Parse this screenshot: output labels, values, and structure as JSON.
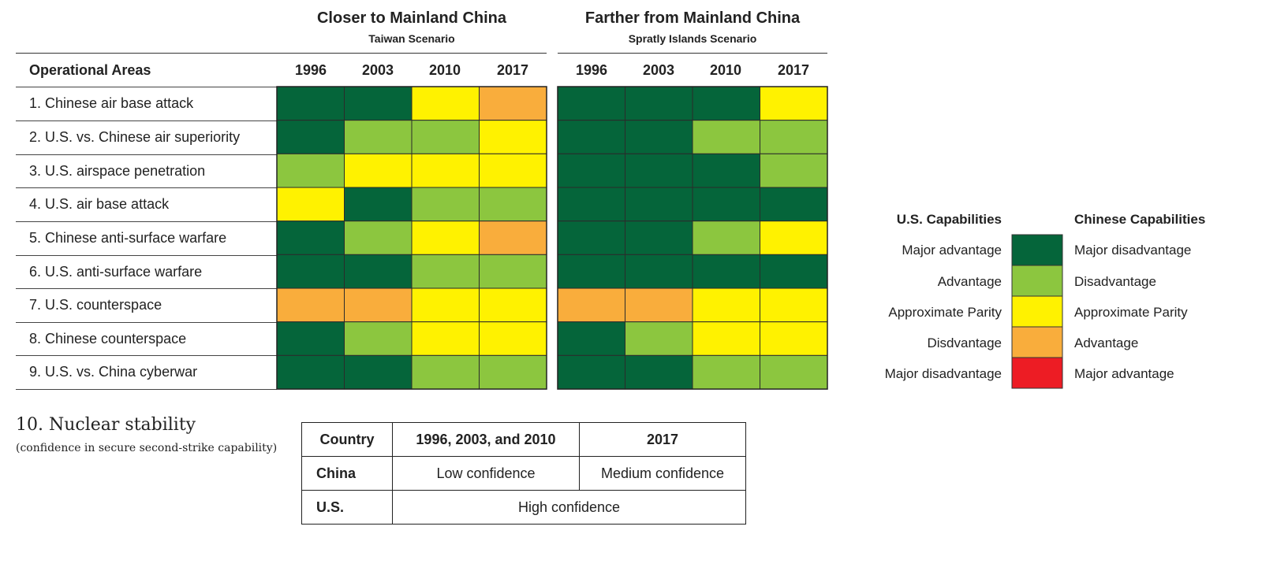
{
  "chart_data": {
    "type": "heatmap",
    "row_header": "Operational Areas",
    "rows": [
      "1. Chinese air base attack",
      "2. U.S. vs. Chinese air superiority",
      "3. U.S. airspace penetration",
      "4. U.S. air base attack",
      "5. Chinese anti-surface warfare",
      "6. U.S. anti-surface warfare",
      "7. U.S. counterspace",
      "8. Chinese counterspace",
      "9. U.S. vs. China cyberwar"
    ],
    "scenarios": [
      {
        "title": "Closer to Mainland China",
        "subtitle": "Taiwan Scenario",
        "years": [
          "1996",
          "2003",
          "2010",
          "2017"
        ],
        "levels": [
          [
            1,
            1,
            3,
            4
          ],
          [
            1,
            2,
            2,
            3
          ],
          [
            2,
            3,
            3,
            3
          ],
          [
            3,
            1,
            2,
            2
          ],
          [
            1,
            2,
            3,
            4
          ],
          [
            1,
            1,
            2,
            2
          ],
          [
            4,
            4,
            3,
            3
          ],
          [
            1,
            2,
            3,
            3
          ],
          [
            1,
            1,
            2,
            2
          ]
        ]
      },
      {
        "title": "Farther from Mainland China",
        "subtitle": "Spratly Islands Scenario",
        "years": [
          "1996",
          "2003",
          "2010",
          "2017"
        ],
        "levels": [
          [
            1,
            1,
            1,
            3
          ],
          [
            1,
            1,
            2,
            2
          ],
          [
            1,
            1,
            1,
            2
          ],
          [
            1,
            1,
            1,
            1
          ],
          [
            1,
            1,
            2,
            3
          ],
          [
            1,
            1,
            1,
            1
          ],
          [
            4,
            4,
            3,
            3
          ],
          [
            1,
            2,
            3,
            3
          ],
          [
            1,
            1,
            2,
            2
          ]
        ]
      }
    ],
    "legend": {
      "us_title": "U.S. Capabilities",
      "cn_title": "Chinese Capabilities",
      "items": [
        {
          "level": 1,
          "us": "Major advantage",
          "cn": "Major disadvantage",
          "color": "#05653a"
        },
        {
          "level": 2,
          "us": "Advantage",
          "cn": "Disadvantage",
          "color": "#8cc63f"
        },
        {
          "level": 3,
          "us": "Approximate Parity",
          "cn": "Approximate Parity",
          "color": "#fff200"
        },
        {
          "level": 4,
          "us": "Disdvantage",
          "cn": "Advantage",
          "color": "#f9ad3c"
        },
        {
          "level": 5,
          "us": "Major disadvantage",
          "cn": "Major advantage",
          "color": "#ed1c24"
        }
      ]
    }
  },
  "nuclear": {
    "title": "10. Nuclear stability",
    "subtitle": "(confidence in secure second-strike capability)",
    "headers": [
      "Country",
      "1996, 2003, and 2010",
      "2017"
    ],
    "china": {
      "label": "China",
      "early": "Low confidence",
      "late": "Medium confidence"
    },
    "us": {
      "label": "U.S.",
      "all": "High confidence"
    }
  }
}
